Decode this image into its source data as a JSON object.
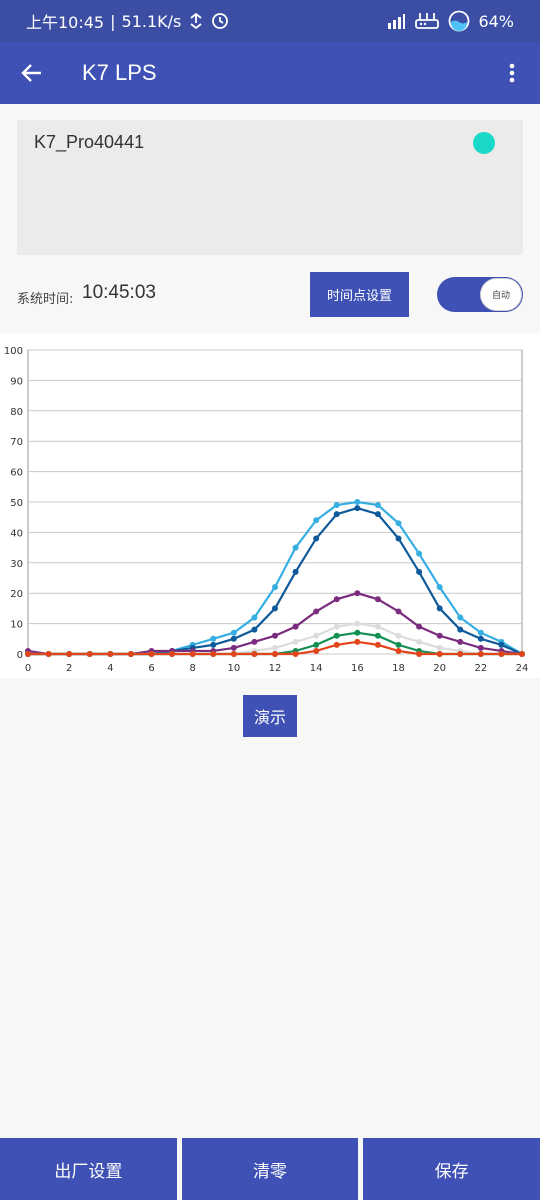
{
  "status_bar": {
    "time": "上午10:45",
    "speed": "51.1K/s",
    "battery": "64%"
  },
  "app_bar": {
    "title": "K7 LPS"
  },
  "device": {
    "name": "K7_Pro40441",
    "status_color": "#19d8c8"
  },
  "time_row": {
    "label": "系统时间:",
    "value": "10:45:03",
    "timepoint_button": "时间点设置",
    "auto_label": "自动"
  },
  "chart_data": {
    "type": "line",
    "xlabel": "",
    "ylabel": "",
    "xlim": [
      0,
      24
    ],
    "ylim": [
      0,
      100
    ],
    "xticks": [
      0,
      2,
      4,
      6,
      8,
      10,
      12,
      14,
      16,
      18,
      20,
      22,
      24
    ],
    "yticks": [
      0,
      10,
      20,
      30,
      40,
      50,
      60,
      70,
      80,
      90,
      100
    ],
    "grid": true,
    "x": [
      0,
      1,
      2,
      3,
      4,
      5,
      6,
      7,
      8,
      9,
      10,
      11,
      12,
      13,
      14,
      15,
      16,
      17,
      18,
      19,
      20,
      21,
      22,
      23,
      24
    ],
    "series": [
      {
        "color": "#35aee2",
        "values": [
          0,
          0,
          0,
          0,
          0,
          0,
          0,
          1,
          3,
          5,
          7,
          12,
          22,
          35,
          44,
          49,
          50,
          49,
          43,
          33,
          22,
          12,
          7,
          4,
          0
        ]
      },
      {
        "color": "#0e5a9a",
        "values": [
          0,
          0,
          0,
          0,
          0,
          0,
          0,
          1,
          2,
          3,
          5,
          8,
          15,
          27,
          38,
          46,
          48,
          46,
          38,
          27,
          15,
          8,
          5,
          3,
          0
        ]
      },
      {
        "color": "#7b2c7e",
        "values": [
          1,
          0,
          0,
          0,
          0,
          0,
          1,
          1,
          1,
          1,
          2,
          4,
          6,
          9,
          14,
          18,
          20,
          18,
          14,
          9,
          6,
          4,
          2,
          1,
          0
        ]
      },
      {
        "color": "#dcdcdc",
        "values": [
          0,
          0,
          0,
          0,
          0,
          0,
          0,
          0,
          0,
          0,
          0,
          1,
          2,
          4,
          6,
          9,
          10,
          9,
          6,
          4,
          2,
          1,
          0,
          0,
          0
        ]
      },
      {
        "color": "#148f52",
        "values": [
          0,
          0,
          0,
          0,
          0,
          0,
          0,
          0,
          0,
          0,
          0,
          0,
          0,
          1,
          3,
          6,
          7,
          6,
          3,
          1,
          0,
          0,
          0,
          0,
          0
        ]
      },
      {
        "color": "#e2451b",
        "values": [
          0,
          0,
          0,
          0,
          0,
          0,
          0,
          0,
          0,
          0,
          0,
          0,
          0,
          0,
          1,
          3,
          4,
          3,
          1,
          0,
          0,
          0,
          0,
          0,
          0
        ]
      }
    ]
  },
  "demo_button": "演示",
  "bottom": {
    "factory_reset": "出厂设置",
    "clear": "清零",
    "save": "保存"
  },
  "colors": {
    "primary": "#3f51b5",
    "status_bar": "#3b4ea4"
  }
}
